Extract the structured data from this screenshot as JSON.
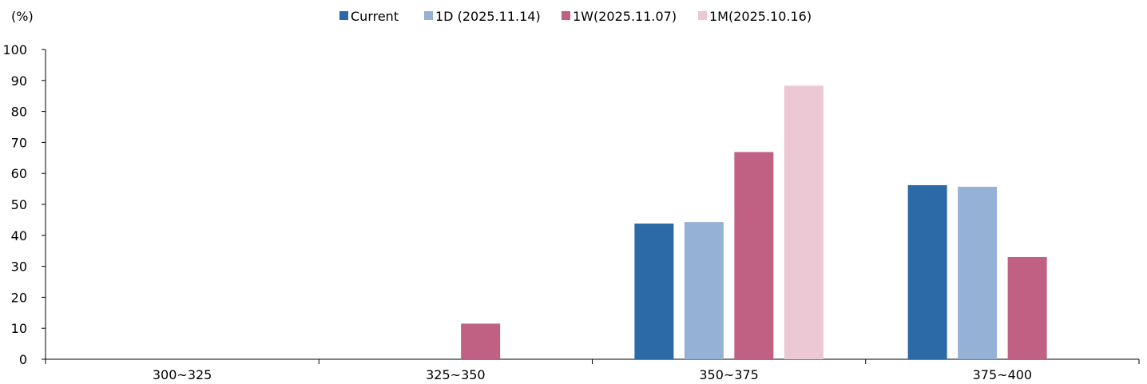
{
  "chart_data": {
    "type": "bar",
    "ylabel": "(%)",
    "xlabel": "",
    "ylim": [
      0,
      100
    ],
    "yticks": [
      0,
      10,
      20,
      30,
      40,
      50,
      60,
      70,
      80,
      90,
      100
    ],
    "grid": false,
    "legend_position": "top-center",
    "categories": [
      "300~325",
      "325~350",
      "350~375",
      "375~400"
    ],
    "series": [
      {
        "name": "Current",
        "color": "#2b6aa6",
        "values": [
          0,
          0,
          43.8,
          56.2
        ]
      },
      {
        "name": "1D (2025.11.14)",
        "color": "#96b1d6",
        "values": [
          0,
          0,
          44.3,
          55.7
        ]
      },
      {
        "name": "1W(2025.11.07)",
        "color": "#c06183",
        "values": [
          0,
          11.5,
          66.9,
          33.0
        ]
      },
      {
        "name": "1M(2025.10.16)",
        "color": "#ebc8d3",
        "values": [
          0,
          0,
          88.3,
          0
        ]
      }
    ]
  }
}
